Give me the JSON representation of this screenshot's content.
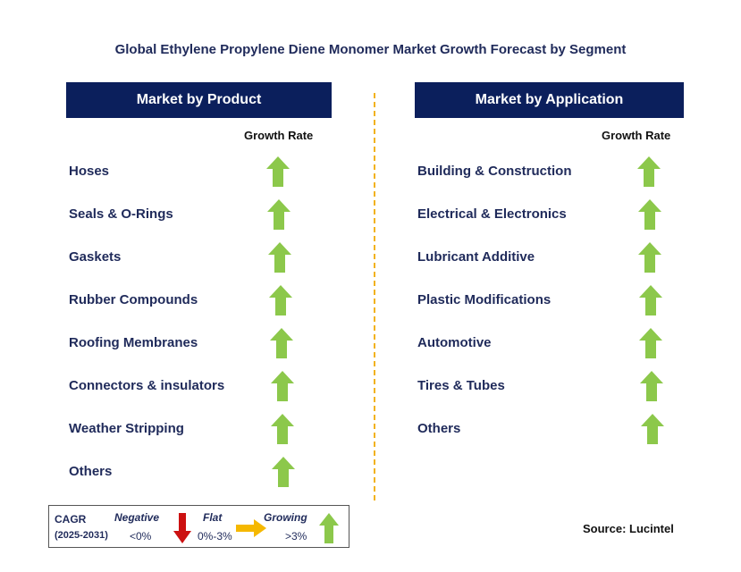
{
  "title": "Global Ethylene Propylene Diene Monomer Market Growth Forecast by Segment",
  "product_panel": {
    "header": "Market by Product",
    "growth_label": "Growth Rate",
    "items": [
      {
        "label": "Hoses",
        "trend": "growing"
      },
      {
        "label": "Seals & O-Rings",
        "trend": "growing"
      },
      {
        "label": "Gaskets",
        "trend": "growing"
      },
      {
        "label": "Rubber Compounds",
        "trend": "growing"
      },
      {
        "label": "Roofing Membranes",
        "trend": "growing"
      },
      {
        "label": "Connectors & insulators",
        "trend": "growing"
      },
      {
        "label": "Weather Stripping",
        "trend": "growing"
      },
      {
        "label": "Others",
        "trend": "growing"
      }
    ]
  },
  "application_panel": {
    "header": "Market by Application",
    "growth_label": "Growth Rate",
    "items": [
      {
        "label": "Building & Construction",
        "trend": "growing"
      },
      {
        "label": "Electrical & Electronics",
        "trend": "growing"
      },
      {
        "label": "Lubricant Additive",
        "trend": "growing"
      },
      {
        "label": "Plastic Modifications",
        "trend": "growing"
      },
      {
        "label": "Automotive",
        "trend": "growing"
      },
      {
        "label": "Tires & Tubes",
        "trend": "growing"
      },
      {
        "label": "Others",
        "trend": "growing"
      }
    ]
  },
  "legend": {
    "cagr_label": "CAGR",
    "period": "(2025-2031)",
    "negative_label": "Negative",
    "negative_range": "<0%",
    "flat_label": "Flat",
    "flat_range": "0%-3%",
    "growing_label": "Growing",
    "growing_range": ">3%"
  },
  "source": "Source: Lucintel",
  "colors": {
    "header_bg": "#0b1f5c",
    "growing_arrow": "#8cc84b",
    "negative_arrow": "#cc1111",
    "flat_arrow": "#f5b800",
    "divider": "#f2b21b"
  }
}
